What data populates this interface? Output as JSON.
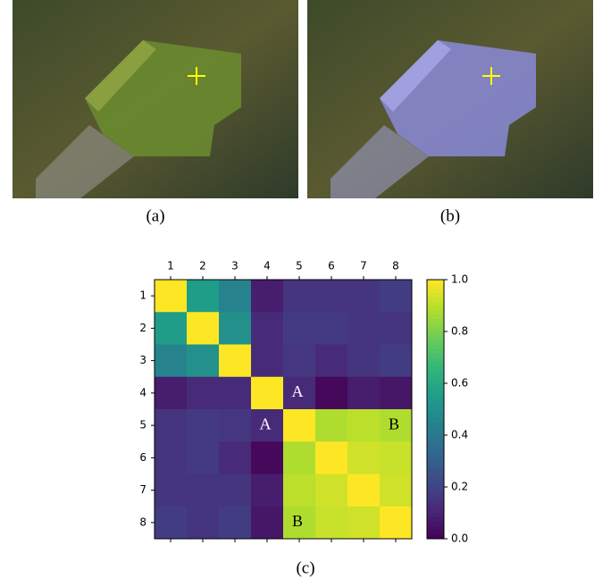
{
  "panels": [
    {
      "caption": "(a)"
    },
    {
      "caption": "(b)"
    }
  ],
  "chart_data": {
    "type": "heatmap",
    "colormap": "viridis",
    "x_categories": [
      "1",
      "2",
      "3",
      "4",
      "5",
      "6",
      "7",
      "8"
    ],
    "y_categories": [
      "1",
      "2",
      "3",
      "4",
      "5",
      "6",
      "7",
      "8"
    ],
    "values": [
      [
        1.0,
        0.55,
        0.45,
        0.08,
        0.15,
        0.15,
        0.15,
        0.18
      ],
      [
        0.55,
        1.0,
        0.5,
        0.12,
        0.17,
        0.17,
        0.15,
        0.15
      ],
      [
        0.45,
        0.5,
        1.0,
        0.12,
        0.16,
        0.12,
        0.15,
        0.18
      ],
      [
        0.08,
        0.12,
        0.12,
        1.0,
        0.12,
        0.02,
        0.08,
        0.06
      ],
      [
        0.15,
        0.17,
        0.16,
        0.12,
        1.0,
        0.88,
        0.9,
        0.88
      ],
      [
        0.15,
        0.17,
        0.12,
        0.02,
        0.88,
        1.0,
        0.93,
        0.92
      ],
      [
        0.15,
        0.15,
        0.15,
        0.08,
        0.9,
        0.93,
        1.0,
        0.93
      ],
      [
        0.18,
        0.15,
        0.18,
        0.06,
        0.88,
        0.92,
        0.93,
        1.0
      ]
    ],
    "annotations": [
      {
        "text": "A",
        "x": "5",
        "y": "4"
      },
      {
        "text": "A",
        "x": "4",
        "y": "5"
      },
      {
        "text": "B",
        "x": "8",
        "y": "5"
      },
      {
        "text": "B",
        "x": "5",
        "y": "8"
      }
    ],
    "clim": [
      0,
      1
    ],
    "cticks": [
      {
        "value": 0,
        "label": "0.0"
      },
      {
        "value": 0.2,
        "label": "0.2"
      },
      {
        "value": 0.4,
        "label": "0.4"
      },
      {
        "value": 0.6,
        "label": "0.6"
      },
      {
        "value": 0.8,
        "label": "0.8"
      },
      {
        "value": 1,
        "label": "1.0"
      }
    ],
    "caption": "(c)"
  }
}
